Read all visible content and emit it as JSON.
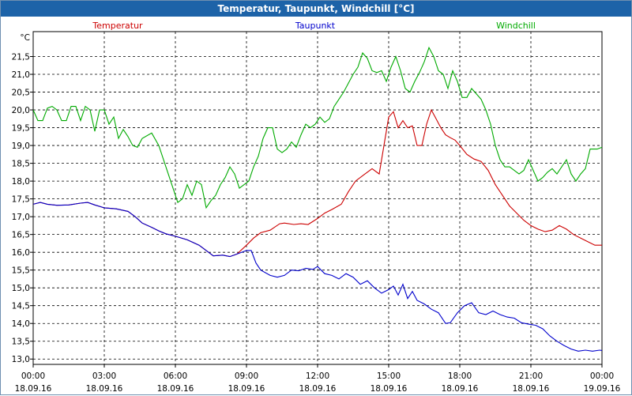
{
  "window": {
    "title": "Temperatur, Taupunkt, Windchill [°C]"
  },
  "chart_data": {
    "type": "line",
    "title": "Temperatur, Taupunkt, Windchill [°C]",
    "yunit": "°C",
    "ylim": [
      12.85,
      22.2
    ],
    "xlim": [
      0,
      24
    ],
    "grid": true,
    "legend_position": "top",
    "x_ticks": [
      {
        "x": 0,
        "time": "00:00",
        "date": "18.09.16"
      },
      {
        "x": 3,
        "time": "03:00",
        "date": "18.09.16"
      },
      {
        "x": 6,
        "time": "06:00",
        "date": "18.09.16"
      },
      {
        "x": 9,
        "time": "09:00",
        "date": "18.09.16"
      },
      {
        "x": 12,
        "time": "12:00",
        "date": "18.09.16"
      },
      {
        "x": 15,
        "time": "15:00",
        "date": "18.09.16"
      },
      {
        "x": 18,
        "time": "18:00",
        "date": "18.09.16"
      },
      {
        "x": 21,
        "time": "21:00",
        "date": "18.09.16"
      },
      {
        "x": 24,
        "time": "00:00",
        "date": "19.09.16"
      }
    ],
    "y_ticks": [
      {
        "v": 13.0,
        "label": "13,0"
      },
      {
        "v": 13.5,
        "label": "13,5"
      },
      {
        "v": 14.0,
        "label": "14,0"
      },
      {
        "v": 14.5,
        "label": "14,5"
      },
      {
        "v": 15.0,
        "label": "15,0"
      },
      {
        "v": 15.5,
        "label": "15,5"
      },
      {
        "v": 16.0,
        "label": "16,0"
      },
      {
        "v": 16.5,
        "label": "16,5"
      },
      {
        "v": 17.0,
        "label": "17,0"
      },
      {
        "v": 17.5,
        "label": "17,5"
      },
      {
        "v": 18.0,
        "label": "18,0"
      },
      {
        "v": 18.5,
        "label": "18,5"
      },
      {
        "v": 19.0,
        "label": "19,0"
      },
      {
        "v": 19.5,
        "label": "19,5"
      },
      {
        "v": 20.0,
        "label": "20,0"
      },
      {
        "v": 20.5,
        "label": "20,5"
      },
      {
        "v": 21.0,
        "label": "21,0"
      },
      {
        "v": 21.5,
        "label": "21,5"
      }
    ],
    "series": [
      {
        "name": "Temperatur",
        "color": "#cc0000",
        "points": [
          [
            0,
            17.35
          ],
          [
            0.3,
            17.4
          ],
          [
            0.6,
            17.35
          ],
          [
            1,
            17.32
          ],
          [
            1.5,
            17.33
          ],
          [
            2,
            17.38
          ],
          [
            2.3,
            17.4
          ],
          [
            2.6,
            17.33
          ],
          [
            3,
            17.25
          ],
          [
            3.5,
            17.22
          ],
          [
            4,
            17.15
          ],
          [
            4.3,
            17.0
          ],
          [
            4.6,
            16.82
          ],
          [
            5,
            16.7
          ],
          [
            5.3,
            16.6
          ],
          [
            5.6,
            16.52
          ],
          [
            6,
            16.45
          ],
          [
            6.5,
            16.35
          ],
          [
            7,
            16.2
          ],
          [
            7.3,
            16.05
          ],
          [
            7.6,
            15.9
          ],
          [
            8,
            15.92
          ],
          [
            8.3,
            15.88
          ],
          [
            8.6,
            15.95
          ],
          [
            9,
            16.2
          ],
          [
            9.3,
            16.4
          ],
          [
            9.6,
            16.55
          ],
          [
            10,
            16.62
          ],
          [
            10.4,
            16.8
          ],
          [
            10.6,
            16.82
          ],
          [
            11,
            16.78
          ],
          [
            11.3,
            16.8
          ],
          [
            11.6,
            16.78
          ],
          [
            12,
            16.95
          ],
          [
            12.3,
            17.1
          ],
          [
            12.6,
            17.2
          ],
          [
            13,
            17.35
          ],
          [
            13.3,
            17.7
          ],
          [
            13.6,
            18.0
          ],
          [
            14,
            18.2
          ],
          [
            14.3,
            18.35
          ],
          [
            14.6,
            18.2
          ],
          [
            14.8,
            19.0
          ],
          [
            15,
            19.8
          ],
          [
            15.2,
            19.95
          ],
          [
            15.4,
            19.5
          ],
          [
            15.6,
            19.7
          ],
          [
            15.8,
            19.5
          ],
          [
            16,
            19.55
          ],
          [
            16.2,
            19.0
          ],
          [
            16.4,
            19.0
          ],
          [
            16.6,
            19.6
          ],
          [
            16.8,
            20.0
          ],
          [
            17,
            19.75
          ],
          [
            17.2,
            19.5
          ],
          [
            17.4,
            19.3
          ],
          [
            17.6,
            19.22
          ],
          [
            17.8,
            19.15
          ],
          [
            18,
            19.0
          ],
          [
            18.3,
            18.75
          ],
          [
            18.6,
            18.62
          ],
          [
            18.9,
            18.55
          ],
          [
            19.2,
            18.3
          ],
          [
            19.5,
            17.9
          ],
          [
            19.8,
            17.6
          ],
          [
            20.1,
            17.3
          ],
          [
            20.4,
            17.1
          ],
          [
            20.7,
            16.9
          ],
          [
            21,
            16.75
          ],
          [
            21.3,
            16.65
          ],
          [
            21.6,
            16.58
          ],
          [
            21.9,
            16.62
          ],
          [
            22.2,
            16.75
          ],
          [
            22.5,
            16.65
          ],
          [
            22.8,
            16.5
          ],
          [
            23.1,
            16.4
          ],
          [
            23.4,
            16.3
          ],
          [
            23.7,
            16.2
          ],
          [
            24,
            16.2
          ],
          [
            24.4,
            16.15
          ],
          [
            24.8,
            16.1
          ],
          [
            25,
            16.05
          ]
        ]
      },
      {
        "name": "Taupunkt",
        "color": "#0000cc",
        "points": [
          [
            0,
            17.35
          ],
          [
            0.3,
            17.4
          ],
          [
            0.6,
            17.35
          ],
          [
            1,
            17.32
          ],
          [
            1.5,
            17.33
          ],
          [
            2,
            17.38
          ],
          [
            2.3,
            17.4
          ],
          [
            2.6,
            17.33
          ],
          [
            3,
            17.25
          ],
          [
            3.5,
            17.22
          ],
          [
            4,
            17.15
          ],
          [
            4.3,
            17.0
          ],
          [
            4.6,
            16.82
          ],
          [
            5,
            16.7
          ],
          [
            5.3,
            16.6
          ],
          [
            5.6,
            16.52
          ],
          [
            6,
            16.45
          ],
          [
            6.5,
            16.35
          ],
          [
            7,
            16.2
          ],
          [
            7.3,
            16.05
          ],
          [
            7.6,
            15.9
          ],
          [
            8,
            15.92
          ],
          [
            8.3,
            15.88
          ],
          [
            8.6,
            15.95
          ],
          [
            9,
            16.05
          ],
          [
            9.2,
            16.05
          ],
          [
            9.4,
            15.7
          ],
          [
            9.6,
            15.5
          ],
          [
            10,
            15.35
          ],
          [
            10.3,
            15.3
          ],
          [
            10.6,
            15.35
          ],
          [
            10.9,
            15.5
          ],
          [
            11.2,
            15.48
          ],
          [
            11.5,
            15.55
          ],
          [
            11.8,
            15.52
          ],
          [
            12,
            15.6
          ],
          [
            12.3,
            15.4
          ],
          [
            12.6,
            15.35
          ],
          [
            12.9,
            15.25
          ],
          [
            13.2,
            15.4
          ],
          [
            13.5,
            15.3
          ],
          [
            13.8,
            15.1
          ],
          [
            14.1,
            15.2
          ],
          [
            14.4,
            15.0
          ],
          [
            14.7,
            14.85
          ],
          [
            15,
            14.95
          ],
          [
            15.2,
            15.05
          ],
          [
            15.4,
            14.8
          ],
          [
            15.6,
            15.1
          ],
          [
            15.8,
            14.7
          ],
          [
            16,
            14.9
          ],
          [
            16.2,
            14.65
          ],
          [
            16.5,
            14.55
          ],
          [
            16.8,
            14.4
          ],
          [
            17.1,
            14.3
          ],
          [
            17.4,
            14.0
          ],
          [
            17.6,
            14.02
          ],
          [
            17.9,
            14.3
          ],
          [
            18.2,
            14.5
          ],
          [
            18.5,
            14.58
          ],
          [
            18.8,
            14.3
          ],
          [
            19.1,
            14.25
          ],
          [
            19.4,
            14.35
          ],
          [
            19.7,
            14.25
          ],
          [
            20,
            14.18
          ],
          [
            20.3,
            14.15
          ],
          [
            20.6,
            14.02
          ],
          [
            20.9,
            13.98
          ],
          [
            21.2,
            13.95
          ],
          [
            21.5,
            13.85
          ],
          [
            21.8,
            13.65
          ],
          [
            22.1,
            13.5
          ],
          [
            22.4,
            13.38
          ],
          [
            22.7,
            13.28
          ],
          [
            23,
            13.22
          ],
          [
            23.3,
            13.25
          ],
          [
            23.6,
            13.22
          ],
          [
            23.9,
            13.25
          ],
          [
            24.2,
            13.22
          ],
          [
            24.5,
            13.25
          ],
          [
            24.8,
            13.25
          ],
          [
            25,
            13.22
          ]
        ]
      },
      {
        "name": "Windchill",
        "color": "#00aa00",
        "points": [
          [
            0,
            20.0
          ],
          [
            0.2,
            19.7
          ],
          [
            0.4,
            19.7
          ],
          [
            0.6,
            20.05
          ],
          [
            0.8,
            20.1
          ],
          [
            1,
            20.0
          ],
          [
            1.2,
            19.7
          ],
          [
            1.4,
            19.7
          ],
          [
            1.6,
            20.1
          ],
          [
            1.8,
            20.1
          ],
          [
            2,
            19.7
          ],
          [
            2.2,
            20.1
          ],
          [
            2.4,
            20.0
          ],
          [
            2.6,
            19.4
          ],
          [
            2.8,
            20.0
          ],
          [
            3,
            20.0
          ],
          [
            3.2,
            19.6
          ],
          [
            3.4,
            19.8
          ],
          [
            3.6,
            19.2
          ],
          [
            3.8,
            19.45
          ],
          [
            4,
            19.25
          ],
          [
            4.2,
            19.0
          ],
          [
            4.4,
            18.95
          ],
          [
            4.6,
            19.2
          ],
          [
            5,
            19.35
          ],
          [
            5.3,
            19.0
          ],
          [
            5.5,
            18.6
          ],
          [
            5.7,
            18.2
          ],
          [
            5.9,
            17.8
          ],
          [
            6.1,
            17.4
          ],
          [
            6.3,
            17.5
          ],
          [
            6.5,
            17.9
          ],
          [
            6.7,
            17.6
          ],
          [
            6.9,
            18.0
          ],
          [
            7.1,
            17.9
          ],
          [
            7.3,
            17.25
          ],
          [
            7.5,
            17.45
          ],
          [
            7.7,
            17.6
          ],
          [
            7.9,
            17.9
          ],
          [
            8.1,
            18.1
          ],
          [
            8.3,
            18.4
          ],
          [
            8.5,
            18.2
          ],
          [
            8.7,
            17.8
          ],
          [
            8.9,
            17.9
          ],
          [
            9.1,
            18.0
          ],
          [
            9.3,
            18.4
          ],
          [
            9.5,
            18.7
          ],
          [
            9.7,
            19.2
          ],
          [
            9.9,
            19.5
          ],
          [
            10.1,
            19.5
          ],
          [
            10.3,
            18.9
          ],
          [
            10.5,
            18.8
          ],
          [
            10.7,
            18.9
          ],
          [
            10.9,
            19.1
          ],
          [
            11.1,
            18.95
          ],
          [
            11.3,
            19.3
          ],
          [
            11.5,
            19.6
          ],
          [
            11.7,
            19.5
          ],
          [
            11.9,
            19.6
          ],
          [
            12.1,
            19.8
          ],
          [
            12.3,
            19.65
          ],
          [
            12.5,
            19.75
          ],
          [
            12.7,
            20.1
          ],
          [
            12.9,
            20.3
          ],
          [
            13.1,
            20.5
          ],
          [
            13.3,
            20.75
          ],
          [
            13.5,
            21.0
          ],
          [
            13.7,
            21.2
          ],
          [
            13.9,
            21.6
          ],
          [
            14.1,
            21.45
          ],
          [
            14.3,
            21.1
          ],
          [
            14.5,
            21.05
          ],
          [
            14.7,
            21.1
          ],
          [
            14.9,
            20.8
          ],
          [
            15.1,
            21.2
          ],
          [
            15.3,
            21.5
          ],
          [
            15.5,
            21.1
          ],
          [
            15.7,
            20.6
          ],
          [
            15.9,
            20.5
          ],
          [
            16.1,
            20.8
          ],
          [
            16.3,
            21.05
          ],
          [
            16.5,
            21.35
          ],
          [
            16.7,
            21.75
          ],
          [
            16.9,
            21.5
          ],
          [
            17.1,
            21.1
          ],
          [
            17.3,
            21.0
          ],
          [
            17.5,
            20.6
          ],
          [
            17.7,
            21.1
          ],
          [
            17.9,
            20.8
          ],
          [
            18.1,
            20.35
          ],
          [
            18.3,
            20.35
          ],
          [
            18.5,
            20.6
          ],
          [
            18.7,
            20.45
          ],
          [
            18.9,
            20.3
          ],
          [
            19.1,
            20.0
          ],
          [
            19.3,
            19.6
          ],
          [
            19.5,
            19.0
          ],
          [
            19.7,
            18.6
          ],
          [
            19.9,
            18.4
          ],
          [
            20.1,
            18.4
          ],
          [
            20.3,
            18.3
          ],
          [
            20.5,
            18.2
          ],
          [
            20.7,
            18.3
          ],
          [
            20.9,
            18.6
          ],
          [
            21.1,
            18.3
          ],
          [
            21.3,
            18.0
          ],
          [
            21.5,
            18.1
          ],
          [
            21.7,
            18.25
          ],
          [
            21.9,
            18.35
          ],
          [
            22.1,
            18.2
          ],
          [
            22.3,
            18.4
          ],
          [
            22.5,
            18.6
          ],
          [
            22.7,
            18.2
          ],
          [
            22.9,
            18.0
          ],
          [
            23.1,
            18.2
          ],
          [
            23.3,
            18.35
          ],
          [
            23.5,
            18.9
          ],
          [
            23.8,
            18.9
          ],
          [
            24,
            18.95
          ],
          [
            24.3,
            18.9
          ],
          [
            24.6,
            18.95
          ],
          [
            25,
            18.95
          ]
        ]
      }
    ]
  }
}
